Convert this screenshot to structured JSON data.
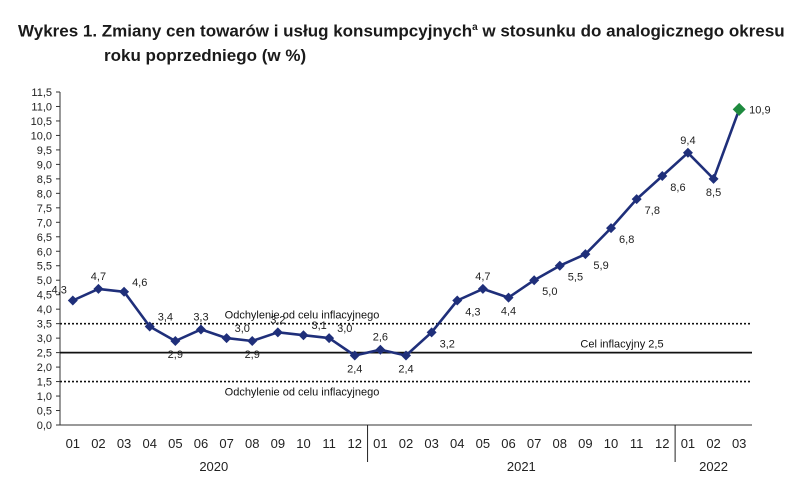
{
  "title": {
    "line1": "Wykres 1. Zmiany cen towarów i usług konsumpcyjnych",
    "sup": "a",
    "line1_end": " w stosunku do analogicznego okresu",
    "line2": "roku poprzedniego (w %)"
  },
  "chart_data": {
    "type": "line",
    "x": [
      "01",
      "02",
      "03",
      "04",
      "05",
      "06",
      "07",
      "08",
      "09",
      "10",
      "11",
      "12",
      "01",
      "02",
      "03",
      "04",
      "05",
      "06",
      "07",
      "08",
      "09",
      "10",
      "11",
      "12",
      "01",
      "02",
      "03"
    ],
    "values": [
      4.3,
      4.7,
      4.6,
      3.4,
      2.9,
      3.3,
      3.0,
      2.9,
      3.2,
      3.1,
      3.0,
      2.4,
      2.6,
      2.4,
      3.2,
      4.3,
      4.7,
      4.4,
      5.0,
      5.5,
      5.9,
      6.8,
      7.8,
      8.6,
      9.4,
      8.5,
      10.9
    ],
    "data_labels": [
      "4,3",
      "4,7",
      "4,6",
      "3,4",
      "2,9",
      "3,3",
      "3,0",
      "2,9",
      "3,2",
      "3,1",
      "3,0",
      "2,4",
      "2,6",
      "2,4",
      "3,2",
      "4,3",
      "4,7",
      "4,4",
      "5,0",
      "5,5",
      "5,9",
      "6,8",
      "7,8",
      "8,6",
      "9,4",
      "8,5",
      "10,9"
    ],
    "years": [
      {
        "label": "2020",
        "start": 0,
        "end": 11
      },
      {
        "label": "2021",
        "start": 12,
        "end": 23
      },
      {
        "label": "2022",
        "start": 24,
        "end": 26
      }
    ],
    "ylim": [
      0,
      11.5
    ],
    "y_ticks": [
      "0,0",
      "0,5",
      "1,0",
      "1,5",
      "2,0",
      "2,5",
      "3,0",
      "3,5",
      "4,0",
      "4,5",
      "5,0",
      "5,5",
      "6,0",
      "6,5",
      "7,0",
      "7,5",
      "8,0",
      "8,5",
      "9,0",
      "9,5",
      "10,0",
      "10,5",
      "11,0",
      "11,5"
    ],
    "reference_lines": [
      {
        "value": 3.5,
        "style": "dotted",
        "label": "Odchylenie od celu inflacyjnego"
      },
      {
        "value": 2.5,
        "style": "solid",
        "label": "Cel inflacyjny 2,5"
      },
      {
        "value": 1.5,
        "style": "dotted",
        "label": "Odchylenie od celu inflacyjnego"
      }
    ],
    "line_color": "#1f2f7a",
    "highlight_color": "#1e8a3e",
    "grid": false
  }
}
